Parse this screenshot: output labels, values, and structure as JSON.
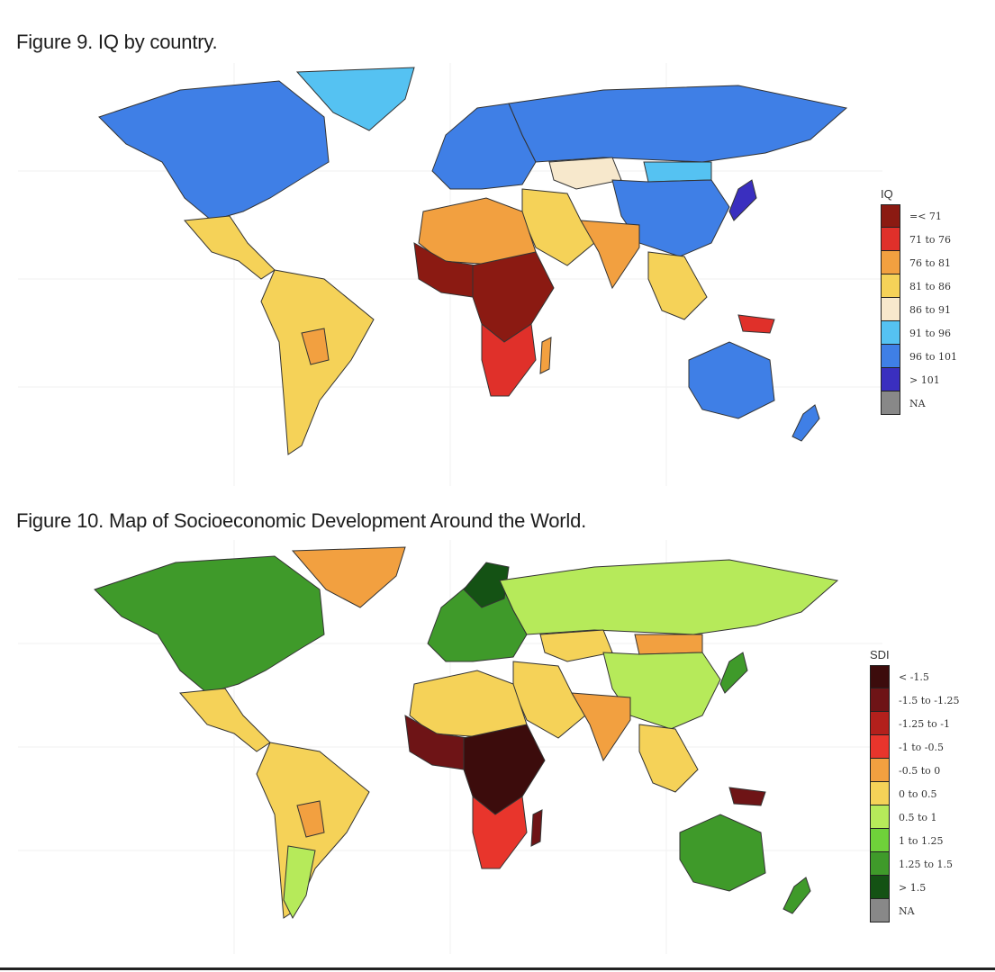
{
  "figure9": {
    "title": "Figure 9. IQ by country.",
    "legend_title": "IQ",
    "legend": [
      {
        "label": "=< 71",
        "color": "#8b1a12"
      },
      {
        "label": "71 to 76",
        "color": "#e0302a"
      },
      {
        "label": "76 to 81",
        "color": "#f2a040"
      },
      {
        "label": "81 to 86",
        "color": "#f5d258"
      },
      {
        "label": "86 to 91",
        "color": "#f7e8cc"
      },
      {
        "label": "91 to 96",
        "color": "#55c2f2"
      },
      {
        "label": "96 to 101",
        "color": "#3f7fe6"
      },
      {
        "label": "> 101",
        "color": "#3a2fbf"
      },
      {
        "label": "NA",
        "color": "#888888"
      }
    ],
    "regions": {
      "north_america": "#3f7fe6",
      "greenland": "#55c2f2",
      "central_america": "#f5d258",
      "south_america": "#f5d258",
      "bolivia": "#f2a040",
      "europe": "#3f7fe6",
      "russia": "#3f7fe6",
      "kazakhstan": "#f7e8cc",
      "mongolia": "#55c2f2",
      "china": "#3f7fe6",
      "japan": "#3a2fbf",
      "india": "#f2a040",
      "middle_east": "#f5d258",
      "north_africa": "#f2a040",
      "west_africa": "#8b1a12",
      "central_africa": "#8b1a12",
      "southern_africa": "#e0302a",
      "madagascar": "#f2a040",
      "southeast_asia": "#f5d258",
      "papua": "#e0302a",
      "australia": "#3f7fe6",
      "new_zealand": "#3f7fe6"
    }
  },
  "figure10": {
    "title": "Figure 10. Map of Socioeconomic Development Around the World.",
    "legend_title": "SDI",
    "legend": [
      {
        "label": "< -1.5",
        "color": "#3c0c0c"
      },
      {
        "label": "-1.5 to -1.25",
        "color": "#6e1416"
      },
      {
        "label": "-1.25 to -1",
        "color": "#b3201c"
      },
      {
        "label": "-1 to -0.5",
        "color": "#e8352c"
      },
      {
        "label": "-0.5 to 0",
        "color": "#f2a040"
      },
      {
        "label": "0 to 0.5",
        "color": "#f5d258"
      },
      {
        "label": "0.5 to 1",
        "color": "#b6ea5a"
      },
      {
        "label": "1 to 1.25",
        "color": "#6fd13a"
      },
      {
        "label": "1.25 to 1.5",
        "color": "#3f9a2a"
      },
      {
        "label": "> 1.5",
        "color": "#145214"
      },
      {
        "label": "NA",
        "color": "#888888"
      }
    ],
    "regions": {
      "north_america": "#3f9a2a",
      "greenland": "#f2a040",
      "central_america": "#f5d258",
      "south_america": "#f5d258",
      "bolivia": "#f2a040",
      "southern_cone": "#b6ea5a",
      "europe": "#3f9a2a",
      "scandinavia": "#145214",
      "russia": "#b6ea5a",
      "kazakhstan": "#f5d258",
      "mongolia": "#f2a040",
      "china": "#b6ea5a",
      "japan": "#3f9a2a",
      "india": "#f2a040",
      "middle_east": "#f5d258",
      "north_africa": "#f5d258",
      "west_africa": "#6e1416",
      "central_africa": "#3c0c0c",
      "southern_africa": "#e8352c",
      "madagascar": "#6e1416",
      "southeast_asia": "#f5d258",
      "papua": "#6e1416",
      "australia": "#3f9a2a",
      "new_zealand": "#3f9a2a"
    }
  }
}
